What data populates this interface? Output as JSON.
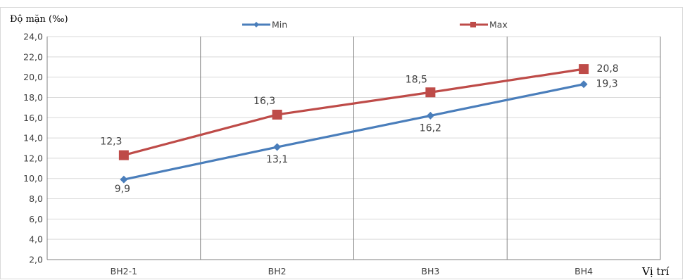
{
  "chart_data": {
    "type": "line",
    "ylabel": "Độ mặn (‰)",
    "xlabel": "Vị trí",
    "categories": [
      "BH2-1",
      "BH2",
      "BH3",
      "BH4"
    ],
    "ylim": [
      2.0,
      24.0
    ],
    "y_ticks": [
      "2,0",
      "4,0",
      "6,0",
      "8,0",
      "10,0",
      "12,0",
      "14,0",
      "16,0",
      "18,0",
      "20,0",
      "22,0",
      "24,0"
    ],
    "grid": "horizontal",
    "legend_position": "top",
    "series": [
      {
        "name": "Min",
        "color": "#4a7ebb",
        "marker": "diamond",
        "values": [
          9.9,
          13.1,
          16.2,
          19.3
        ],
        "labels": [
          "9,9",
          "13,1",
          "16,2",
          "19,3"
        ]
      },
      {
        "name": "Max",
        "color": "#be4b48",
        "marker": "square",
        "values": [
          12.3,
          16.3,
          18.5,
          20.8
        ],
        "labels": [
          "12,3",
          "16,3",
          "18,5",
          "20,8"
        ]
      }
    ]
  }
}
